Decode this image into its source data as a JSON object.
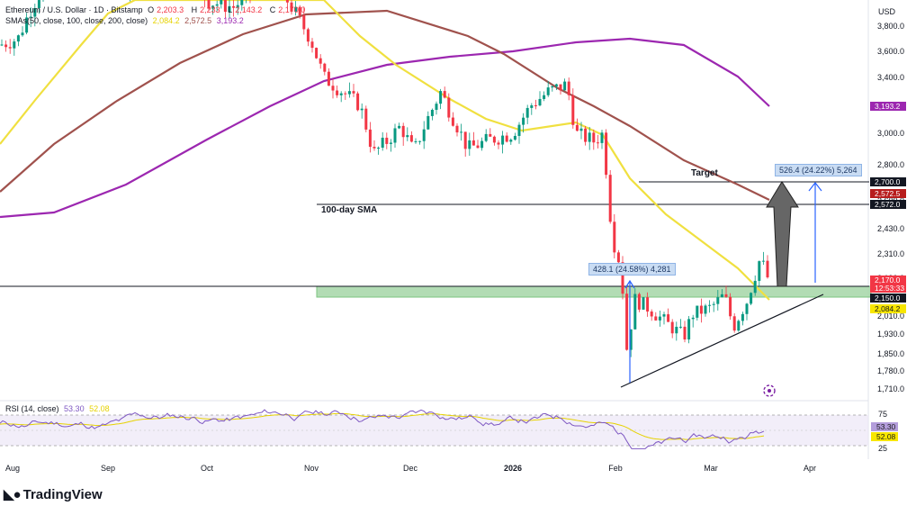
{
  "header": {
    "title": "Ethereum / U.S. Dollar · 1D · Bitstamp",
    "ohlc": [
      {
        "label": "O",
        "value": "2,203.3",
        "color": "#f23645"
      },
      {
        "label": "H",
        "value": "2,233",
        "color": "#f23645"
      },
      {
        "label": "L",
        "value": "2,143.2",
        "color": "#f23645"
      },
      {
        "label": "C",
        "value": "2,170.0",
        "color": "#f23645"
      }
    ],
    "sma_label": "SMAs(50, close, 100, close, 200, close)",
    "sma_values": [
      {
        "value": "2,084.2",
        "color": "#e6d200"
      },
      {
        "value": "2,572.5",
        "color": "#a0524d"
      },
      {
        "value": "3,193.2",
        "color": "#9c27b0"
      }
    ]
  },
  "annotations": {
    "sma100": "100-day SMA",
    "target": "Target",
    "measure_upper": "526.4 (24.22%) 5,264",
    "measure_lower": "428.1 (24.58%) 4,281"
  },
  "rsi": {
    "label": "RSI (14, close)",
    "value": "53.30",
    "ma_value": "52.08",
    "levels": [
      75,
      50,
      25
    ]
  },
  "footer": {
    "brand": "TradingView"
  },
  "chart_data": {
    "type": "candlestick",
    "symbol": "Ethereum / U.S. Dollar",
    "currency": "USD",
    "y_ticks": [
      3800,
      3600,
      3400,
      3200,
      3000,
      2800,
      2600,
      2430,
      2310,
      2190,
      2010,
      1930,
      1850,
      1780,
      1710
    ],
    "y_tick_labels": [
      "3,800.0",
      "3,600.0",
      "3,400.0",
      "3,200.0",
      "3,000.0",
      "2,800.0",
      "2,600.0",
      "2,430.0",
      "2,310.0",
      "2,190.0",
      "2,010.0",
      "1,930.0",
      "1,850.0",
      "1,780.0",
      "1,710.0"
    ],
    "x_labels": [
      "Aug",
      "Sep",
      "Oct",
      "Nov",
      "Dec",
      "2026",
      "Feb",
      "Mar",
      "Apr"
    ],
    "price_series_monthly_closes": [
      {
        "month": "Aug",
        "close": 3650
      },
      {
        "month": "Sep",
        "close": 3950
      },
      {
        "month": "Oct",
        "close": 3900
      },
      {
        "month": "Nov",
        "close": 3350
      },
      {
        "month": "Dec",
        "close": 2950
      },
      {
        "month": "2026",
        "close": 3000
      },
      {
        "month": "Feb",
        "close": 2000
      },
      {
        "month": "Mar",
        "close": 2170
      }
    ],
    "price_badges": [
      {
        "value": "2,700.0",
        "bg": "#131722",
        "fg": "#ffffff"
      },
      {
        "value": "2,572.5",
        "bg": "#b71c1c",
        "fg": "#ffffff"
      },
      {
        "value": "2,572.0",
        "bg": "#131722",
        "fg": "#ffffff"
      },
      {
        "value": "3,193.2",
        "bg": "#9c27b0",
        "fg": "#ffffff"
      },
      {
        "value": "2,170.0",
        "bg": "#f23645",
        "fg": "#ffffff"
      },
      {
        "value": "12:53:33",
        "bg": "#f23645",
        "fg": "#ffffff"
      },
      {
        "value": "2,150.0",
        "bg": "#131722",
        "fg": "#ffffff"
      },
      {
        "value": "2,084.2",
        "bg": "#f7e600",
        "fg": "#131722"
      }
    ],
    "levels": {
      "target": 2700,
      "sma100_line": 2572,
      "support_zone": [
        2110,
        2175
      ],
      "support_line": 2150
    },
    "last_price": 2170.0,
    "colors": {
      "up": "#089981",
      "down": "#f23645",
      "sma50": "#f0e040",
      "sma100": "#a0524d",
      "sma200": "#9c27b0",
      "zone": "#a5d6a7"
    }
  }
}
